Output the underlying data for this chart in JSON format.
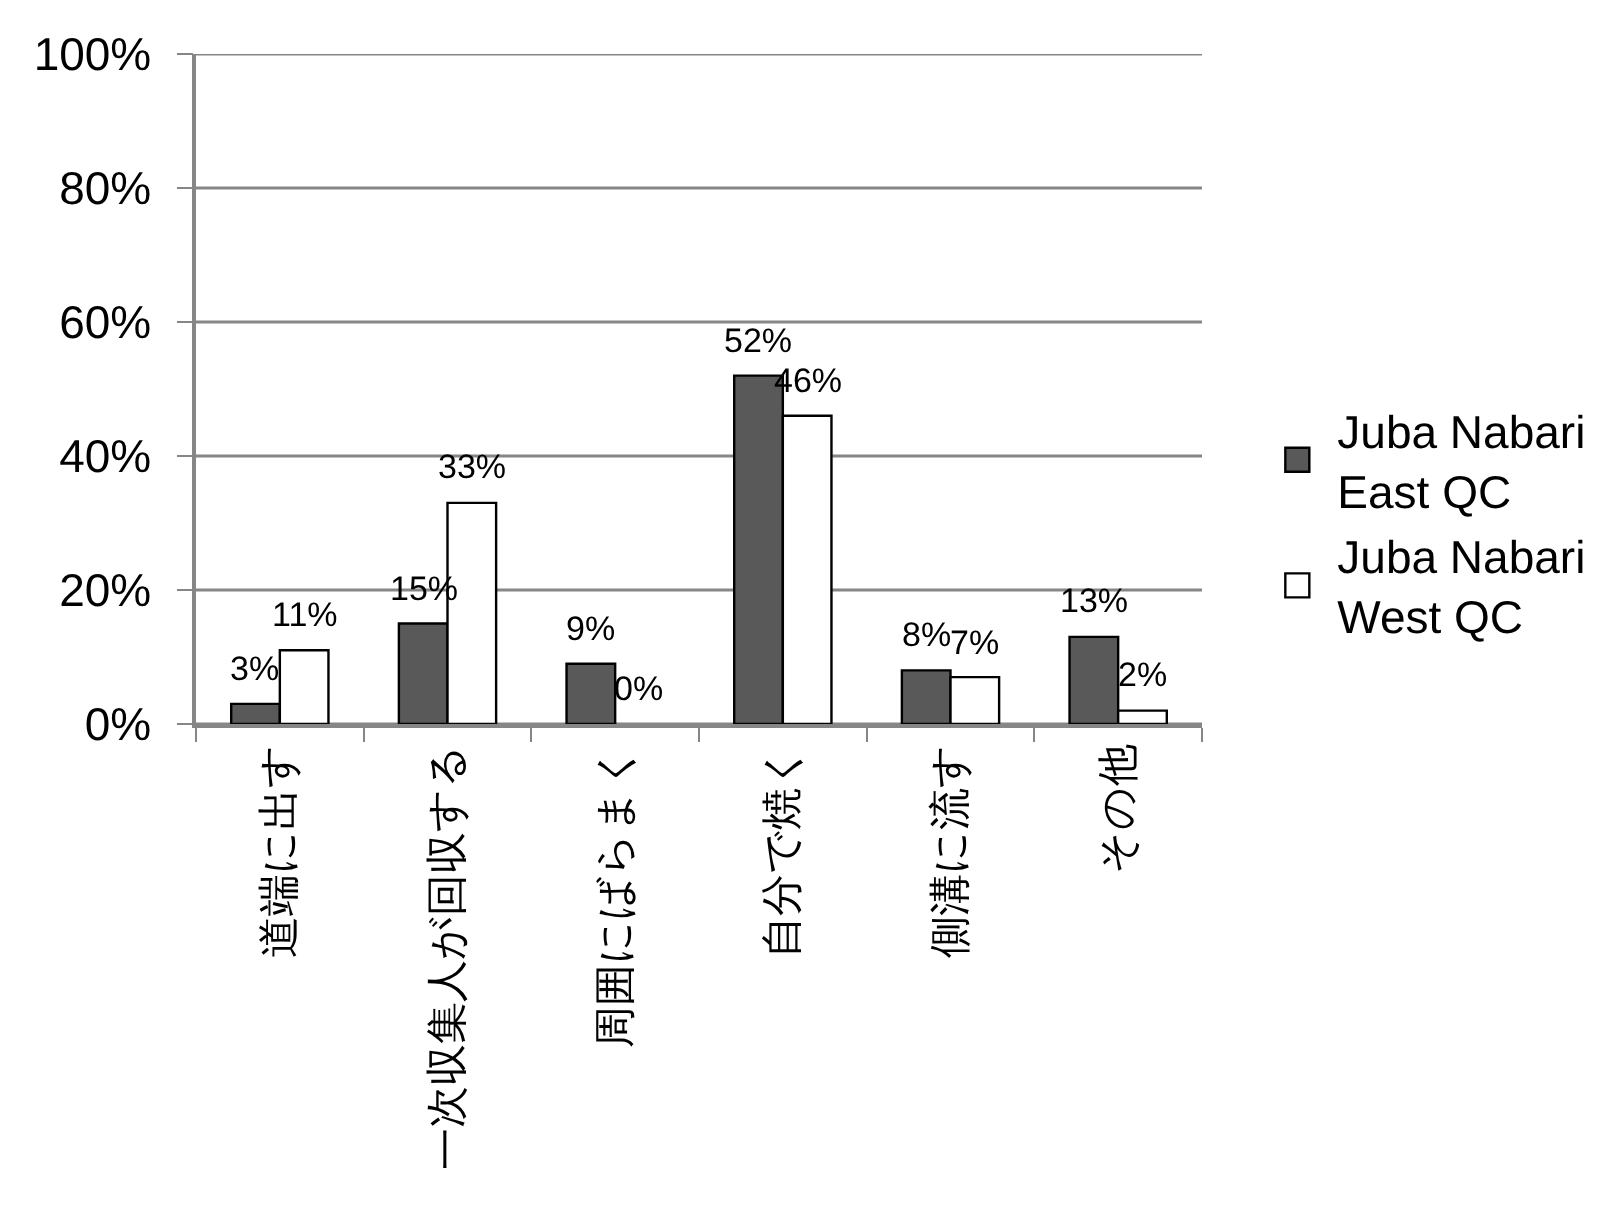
{
  "chart_data": {
    "type": "bar",
    "categories": [
      "道端に出す",
      "一次収集人が回収する",
      "周囲にばらまく",
      "自分で焼く",
      "側溝に流す",
      "その他"
    ],
    "series": [
      {
        "name": "Juba Nabari East QC",
        "color": "#595959",
        "values": [
          3,
          15,
          9,
          52,
          8,
          13
        ],
        "value_labels": [
          "3%",
          "15%",
          "9%",
          "52%",
          "8%",
          "13%"
        ]
      },
      {
        "name": "Juba Nabari West QC",
        "color": "#ffffff",
        "values": [
          11,
          33,
          0,
          46,
          7,
          2
        ],
        "value_labels": [
          "11%",
          "33%",
          "0%",
          "46%",
          "7%",
          "2%"
        ]
      }
    ],
    "ylim": [
      0,
      100
    ],
    "yticks": [
      {
        "value": 0,
        "label": "0%"
      },
      {
        "value": 20,
        "label": "20%"
      },
      {
        "value": 40,
        "label": "40%"
      },
      {
        "value": 60,
        "label": "60%"
      },
      {
        "value": 80,
        "label": "80%"
      },
      {
        "value": 100,
        "label": "100%"
      }
    ],
    "grid": "y",
    "legend": "right"
  }
}
